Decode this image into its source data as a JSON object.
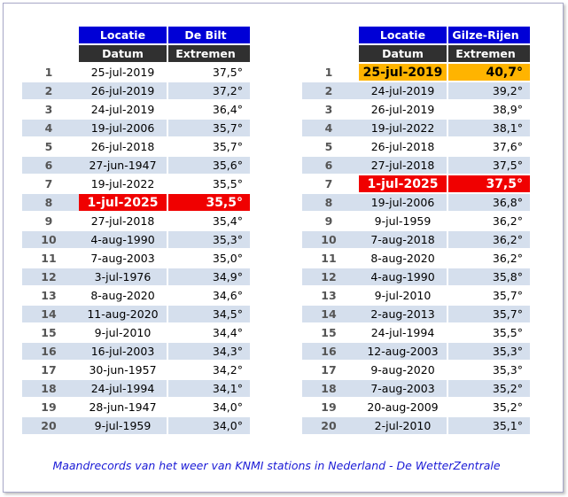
{
  "left": {
    "header_location_label": "Locatie",
    "header_location_value": "De Bilt",
    "header_date_label": "Datum",
    "header_value_label": "Extremen",
    "rows": [
      {
        "rank": "1",
        "date": "25-jul-2019",
        "value": "37,5°"
      },
      {
        "rank": "2",
        "date": "26-jul-2019",
        "value": "37,2°"
      },
      {
        "rank": "3",
        "date": "24-jul-2019",
        "value": "36,4°"
      },
      {
        "rank": "4",
        "date": "19-jul-2006",
        "value": "35,7°"
      },
      {
        "rank": "5",
        "date": "26-jul-2018",
        "value": "35,7°"
      },
      {
        "rank": "6",
        "date": "27-jun-1947",
        "value": "35,6°"
      },
      {
        "rank": "7",
        "date": "19-jul-2022",
        "value": "35,5°"
      },
      {
        "rank": "8",
        "date": "1-jul-2025",
        "value": "35,5°",
        "highlight": "red"
      },
      {
        "rank": "9",
        "date": "27-jul-2018",
        "value": "35,4°"
      },
      {
        "rank": "10",
        "date": "4-aug-1990",
        "value": "35,3°"
      },
      {
        "rank": "11",
        "date": "7-aug-2003",
        "value": "35,0°"
      },
      {
        "rank": "12",
        "date": "3-jul-1976",
        "value": "34,9°"
      },
      {
        "rank": "13",
        "date": "8-aug-2020",
        "value": "34,6°"
      },
      {
        "rank": "14",
        "date": "11-aug-2020",
        "value": "34,5°"
      },
      {
        "rank": "15",
        "date": "9-jul-2010",
        "value": "34,4°"
      },
      {
        "rank": "16",
        "date": "16-jul-2003",
        "value": "34,3°"
      },
      {
        "rank": "17",
        "date": "30-jun-1957",
        "value": "34,2°"
      },
      {
        "rank": "18",
        "date": "24-jul-1994",
        "value": "34,1°"
      },
      {
        "rank": "19",
        "date": "28-jun-1947",
        "value": "34,0°"
      },
      {
        "rank": "20",
        "date": "9-jul-1959",
        "value": "34,0°"
      }
    ]
  },
  "right": {
    "header_location_label": "Locatie",
    "header_location_value": "Gilze-Rijen",
    "header_date_label": "Datum",
    "header_value_label": "Extremen",
    "rows": [
      {
        "rank": "1",
        "date": "25-jul-2019",
        "value": "40,7°",
        "highlight": "orange"
      },
      {
        "rank": "2",
        "date": "24-jul-2019",
        "value": "39,2°"
      },
      {
        "rank": "3",
        "date": "26-jul-2019",
        "value": "38,9°"
      },
      {
        "rank": "4",
        "date": "19-jul-2022",
        "value": "38,1°"
      },
      {
        "rank": "5",
        "date": "26-jul-2018",
        "value": "37,6°"
      },
      {
        "rank": "6",
        "date": "27-jul-2018",
        "value": "37,5°"
      },
      {
        "rank": "7",
        "date": "1-jul-2025",
        "value": "37,5°",
        "highlight": "red"
      },
      {
        "rank": "8",
        "date": "19-jul-2006",
        "value": "36,8°"
      },
      {
        "rank": "9",
        "date": "9-jul-1959",
        "value": "36,2°"
      },
      {
        "rank": "10",
        "date": "7-aug-2018",
        "value": "36,2°"
      },
      {
        "rank": "11",
        "date": "8-aug-2020",
        "value": "36,2°"
      },
      {
        "rank": "12",
        "date": "4-aug-1990",
        "value": "35,8°"
      },
      {
        "rank": "13",
        "date": "9-jul-2010",
        "value": "35,7°"
      },
      {
        "rank": "14",
        "date": "2-aug-2013",
        "value": "35,7°"
      },
      {
        "rank": "15",
        "date": "24-jul-1994",
        "value": "35,5°"
      },
      {
        "rank": "16",
        "date": "12-aug-2003",
        "value": "35,3°"
      },
      {
        "rank": "17",
        "date": "9-aug-2020",
        "value": "35,3°"
      },
      {
        "rank": "18",
        "date": "7-aug-2003",
        "value": "35,2°"
      },
      {
        "rank": "19",
        "date": "20-aug-2009",
        "value": "35,2°"
      },
      {
        "rank": "20",
        "date": "2-jul-2010",
        "value": "35,1°"
      }
    ]
  },
  "caption": "Maandrecords van het weer van KNMI stations in Nederland - De WetterZentrale",
  "colors": {
    "header_blue": "#0000d6",
    "header_dark": "#303030",
    "row_stripe": "#d5dfed",
    "highlight_red": "#f00000",
    "highlight_orange": "#ffb400",
    "caption": "#1a1ad6"
  }
}
